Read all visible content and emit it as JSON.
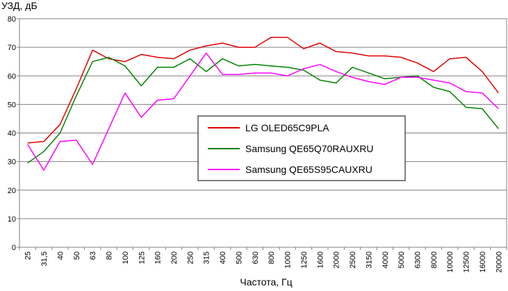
{
  "chart_data": {
    "type": "line",
    "ylabel": "УЗД, дБ",
    "xlabel": "Частота, Гц",
    "ylim": [
      0,
      80
    ],
    "yticks": [
      0,
      10,
      20,
      30,
      40,
      50,
      60,
      70,
      80
    ],
    "grid": true,
    "legend_position": "center",
    "categories": [
      "25",
      "31,5",
      "40",
      "50",
      "63",
      "80",
      "100",
      "125",
      "160",
      "200",
      "250",
      "315",
      "400",
      "500",
      "630",
      "800",
      "1000",
      "1250",
      "1600",
      "2000",
      "2500",
      "3150",
      "4000",
      "5000",
      "6300",
      "8000",
      "10000",
      "12500",
      "16000",
      "20000"
    ],
    "series": [
      {
        "name": "LG OLED65C9PLA",
        "color": "#e00000",
        "values": [
          36.5,
          37.0,
          43.0,
          55.5,
          69.0,
          66.0,
          65.0,
          67.5,
          66.5,
          66.0,
          69.0,
          70.5,
          71.5,
          70.0,
          70.0,
          73.5,
          73.5,
          69.5,
          71.5,
          68.5,
          68.0,
          67.0,
          67.0,
          66.5,
          64.5,
          61.5,
          66.0,
          66.5,
          61.5,
          54.0
        ]
      },
      {
        "name": "Samsung QE65Q70RAUXRU",
        "color": "#008000",
        "values": [
          29.5,
          33.5,
          40.0,
          53.0,
          65.0,
          66.5,
          63.5,
          56.5,
          63.0,
          63.0,
          66.0,
          61.5,
          66.0,
          63.5,
          64.0,
          63.5,
          63.0,
          62.0,
          58.5,
          57.5,
          63.0,
          61.0,
          59.0,
          59.5,
          60.0,
          56.0,
          54.5,
          49.0,
          48.5,
          41.5
        ]
      },
      {
        "name": "Samsung QE65S95CAUXRU",
        "color": "#ff00ff",
        "values": [
          36.0,
          27.0,
          37.0,
          37.5,
          29.0,
          41.5,
          54.0,
          45.5,
          51.5,
          52.0,
          60.0,
          68.0,
          60.5,
          60.5,
          61.0,
          61.0,
          60.0,
          62.5,
          64.0,
          61.5,
          59.5,
          58.0,
          57.0,
          59.5,
          59.5,
          58.5,
          57.5,
          54.5,
          54.0,
          48.5
        ]
      }
    ]
  }
}
